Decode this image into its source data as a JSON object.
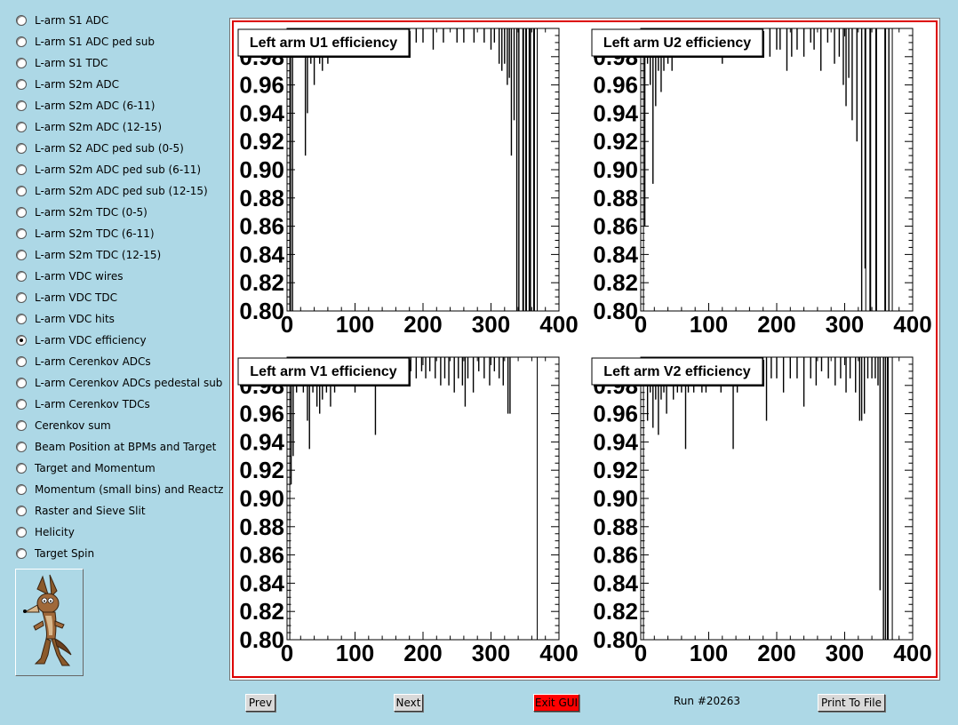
{
  "sidebar": {
    "items": [
      {
        "label": "L-arm S1 ADC",
        "checked": false
      },
      {
        "label": "L-arm S1 ADC ped sub",
        "checked": false
      },
      {
        "label": "L-arm S1 TDC",
        "checked": false
      },
      {
        "label": "L-arm S2m ADC",
        "checked": false
      },
      {
        "label": "L-arm S2m ADC (6-11)",
        "checked": false
      },
      {
        "label": "L-arm S2m ADC (12-15)",
        "checked": false
      },
      {
        "label": "L-arm S2 ADC ped sub (0-5)",
        "checked": false
      },
      {
        "label": "L-arm S2m ADC ped sub (6-11)",
        "checked": false
      },
      {
        "label": "L-arm S2m ADC ped sub (12-15)",
        "checked": false
      },
      {
        "label": "L-arm S2m TDC (0-5)",
        "checked": false
      },
      {
        "label": "L-arm S2m TDC (6-11)",
        "checked": false
      },
      {
        "label": "L-arm S2m TDC (12-15)",
        "checked": false
      },
      {
        "label": "L-arm VDC wires",
        "checked": false
      },
      {
        "label": "L-arm VDC TDC",
        "checked": false
      },
      {
        "label": "L-arm VDC hits",
        "checked": false
      },
      {
        "label": "L-arm VDC efficiency",
        "checked": true
      },
      {
        "label": "L-arm Cerenkov ADCs",
        "checked": false
      },
      {
        "label": "L-arm Cerenkov ADCs pedestal sub",
        "checked": false
      },
      {
        "label": "L-arm Cerenkov TDCs",
        "checked": false
      },
      {
        "label": "Cerenkov sum",
        "checked": false
      },
      {
        "label": "Beam Position at BPMs and Target",
        "checked": false
      },
      {
        "label": "Target and Momentum",
        "checked": false
      },
      {
        "label": "Momentum (small bins) and Reactz",
        "checked": false
      },
      {
        "label": "Raster and Sieve Slit",
        "checked": false
      },
      {
        "label": "Helicity",
        "checked": false
      },
      {
        "label": "Target Spin",
        "checked": false
      }
    ],
    "logo_icon": "coyote-logo-icon"
  },
  "buttons": {
    "prev": "Prev",
    "next": "Next",
    "exit": "Exit GUI",
    "print": "Print To File"
  },
  "status": {
    "run": "Run #20263"
  },
  "colors": {
    "background": "#add8e6",
    "exit_button": "#ff0000",
    "canvas_border": "#dd0000"
  },
  "chart_data": [
    {
      "type": "bar",
      "title": "Left arm U1 efficiency",
      "xlim": [
        0,
        400
      ],
      "ylim": [
        0.8,
        1.0
      ],
      "xticks": [
        "0",
        "100",
        "200",
        "300",
        "400"
      ],
      "yticks": [
        "0.80",
        "0.82",
        "0.84",
        "0.86",
        "0.88",
        "0.90",
        "0.92",
        "0.94",
        "0.96",
        "0.98"
      ],
      "data_range": [
        4,
        368
      ],
      "baseline": 1.0,
      "dips": [
        [
          5,
          0.8
        ],
        [
          8,
          0.8
        ],
        [
          18,
          0.98
        ],
        [
          22,
          0.99
        ],
        [
          27,
          0.91
        ],
        [
          30,
          0.94
        ],
        [
          35,
          0.975
        ],
        [
          40,
          0.96
        ],
        [
          44,
          0.985
        ],
        [
          48,
          0.975
        ],
        [
          52,
          0.97
        ],
        [
          56,
          0.985
        ],
        [
          60,
          0.975
        ],
        [
          65,
          0.99
        ],
        [
          70,
          0.985
        ],
        [
          78,
          0.99
        ],
        [
          85,
          0.99
        ],
        [
          95,
          0.99
        ],
        [
          110,
          0.99
        ],
        [
          125,
          0.99
        ],
        [
          140,
          0.99
        ],
        [
          160,
          0.99
        ],
        [
          175,
          0.99
        ],
        [
          180,
          0.985
        ],
        [
          190,
          0.99
        ],
        [
          200,
          0.99
        ],
        [
          215,
          0.985
        ],
        [
          230,
          0.99
        ],
        [
          250,
          0.99
        ],
        [
          260,
          0.99
        ],
        [
          275,
          0.99
        ],
        [
          290,
          0.99
        ],
        [
          300,
          0.985
        ],
        [
          305,
          0.99
        ],
        [
          312,
          0.975
        ],
        [
          316,
          0.97
        ],
        [
          320,
          0.975
        ],
        [
          324,
          0.96
        ],
        [
          327,
          0.965
        ],
        [
          330,
          0.91
        ],
        [
          334,
          0.935
        ],
        [
          338,
          0.8
        ],
        [
          341,
          0.8
        ],
        [
          347,
          0.8
        ],
        [
          352,
          0.8
        ],
        [
          358,
          0.8
        ],
        [
          363,
          0.8
        ]
      ],
      "gaps": [
        [
          348,
          351
        ],
        [
          356,
          357
        ],
        [
          364,
          368
        ]
      ]
    },
    {
      "type": "bar",
      "title": "Left arm U2 efficiency",
      "xlim": [
        0,
        400
      ],
      "ylim": [
        0.8,
        1.0
      ],
      "xticks": [
        "0",
        "100",
        "200",
        "300",
        "400"
      ],
      "yticks": [
        "0.80",
        "0.82",
        "0.84",
        "0.86",
        "0.88",
        "0.90",
        "0.92",
        "0.94",
        "0.96",
        "0.98"
      ],
      "data_range": [
        4,
        370
      ],
      "baseline": 1.0,
      "dips": [
        [
          6,
          0.86
        ],
        [
          10,
          0.975
        ],
        [
          14,
          0.96
        ],
        [
          18,
          0.89
        ],
        [
          22,
          0.945
        ],
        [
          26,
          0.97
        ],
        [
          30,
          0.955
        ],
        [
          34,
          0.97
        ],
        [
          40,
          0.975
        ],
        [
          46,
          0.97
        ],
        [
          52,
          0.985
        ],
        [
          60,
          0.98
        ],
        [
          70,
          0.985
        ],
        [
          80,
          0.98
        ],
        [
          90,
          0.985
        ],
        [
          100,
          0.99
        ],
        [
          110,
          0.985
        ],
        [
          120,
          0.975
        ],
        [
          130,
          0.985
        ],
        [
          145,
          0.98
        ],
        [
          160,
          0.99
        ],
        [
          175,
          0.985
        ],
        [
          190,
          0.98
        ],
        [
          200,
          0.985
        ],
        [
          205,
          0.985
        ],
        [
          215,
          0.97
        ],
        [
          222,
          0.98
        ],
        [
          230,
          0.985
        ],
        [
          240,
          0.98
        ],
        [
          250,
          0.99
        ],
        [
          255,
          0.985
        ],
        [
          265,
          0.97
        ],
        [
          275,
          0.99
        ],
        [
          285,
          0.975
        ],
        [
          292,
          0.98
        ],
        [
          298,
          0.96
        ],
        [
          302,
          0.945
        ],
        [
          306,
          0.965
        ],
        [
          311,
          0.935
        ],
        [
          318,
          0.92
        ],
        [
          325,
          0.8
        ],
        [
          330,
          0.83
        ],
        [
          338,
          0.8
        ],
        [
          346,
          0.8
        ],
        [
          360,
          0.8
        ],
        [
          365,
          0.8
        ]
      ],
      "gaps": [
        [
          331,
          337
        ],
        [
          347,
          359
        ]
      ]
    },
    {
      "type": "bar",
      "title": "Left arm V1 efficiency",
      "xlim": [
        0,
        400
      ],
      "ylim": [
        0.8,
        1.0
      ],
      "xticks": [
        "0",
        "100",
        "200",
        "300",
        "400"
      ],
      "yticks": [
        "0.80",
        "0.82",
        "0.84",
        "0.86",
        "0.88",
        "0.90",
        "0.92",
        "0.94",
        "0.96",
        "0.98"
      ],
      "data_range": [
        4,
        368
      ],
      "baseline": 1.0,
      "dips": [
        [
          6,
          0.91
        ],
        [
          9,
          0.93
        ],
        [
          14,
          0.975
        ],
        [
          18,
          0.985
        ],
        [
          24,
          0.975
        ],
        [
          30,
          0.955
        ],
        [
          33,
          0.935
        ],
        [
          38,
          0.975
        ],
        [
          44,
          0.965
        ],
        [
          48,
          0.96
        ],
        [
          52,
          0.97
        ],
        [
          58,
          0.975
        ],
        [
          64,
          0.965
        ],
        [
          70,
          0.975
        ],
        [
          76,
          0.98
        ],
        [
          84,
          0.985
        ],
        [
          92,
          0.985
        ],
        [
          100,
          0.975
        ],
        [
          108,
          0.985
        ],
        [
          115,
          0.99
        ],
        [
          122,
          0.985
        ],
        [
          130,
          0.945
        ],
        [
          140,
          0.985
        ],
        [
          150,
          0.99
        ],
        [
          160,
          0.99
        ],
        [
          172,
          0.985
        ],
        [
          182,
          0.99
        ],
        [
          190,
          0.985
        ],
        [
          198,
          0.99
        ],
        [
          204,
          0.985
        ],
        [
          210,
          0.99
        ],
        [
          218,
          0.985
        ],
        [
          226,
          0.98
        ],
        [
          232,
          0.985
        ],
        [
          238,
          0.98
        ],
        [
          246,
          0.975
        ],
        [
          252,
          0.985
        ],
        [
          258,
          0.98
        ],
        [
          262,
          0.965
        ],
        [
          266,
          0.985
        ],
        [
          274,
          0.975
        ],
        [
          282,
          0.99
        ],
        [
          290,
          0.985
        ],
        [
          298,
          0.98
        ],
        [
          305,
          0.99
        ],
        [
          312,
          0.985
        ],
        [
          318,
          0.98
        ],
        [
          325,
          0.96
        ],
        [
          328,
          0.96
        ]
      ]
    },
    {
      "type": "bar",
      "title": "Left arm V2 efficiency",
      "xlim": [
        0,
        400
      ],
      "ylim": [
        0.8,
        1.0
      ],
      "xticks": [
        "0",
        "100",
        "200",
        "300",
        "400"
      ],
      "yticks": [
        "0.80",
        "0.82",
        "0.84",
        "0.86",
        "0.88",
        "0.90",
        "0.92",
        "0.94",
        "0.96",
        "0.98"
      ],
      "data_range": [
        4,
        370
      ],
      "baseline": 1.0,
      "dips": [
        [
          6,
          0.98
        ],
        [
          10,
          0.955
        ],
        [
          14,
          0.975
        ],
        [
          18,
          0.95
        ],
        [
          22,
          0.97
        ],
        [
          26,
          0.945
        ],
        [
          30,
          0.97
        ],
        [
          34,
          0.975
        ],
        [
          38,
          0.96
        ],
        [
          44,
          0.985
        ],
        [
          48,
          0.97
        ],
        [
          54,
          0.975
        ],
        [
          60,
          0.975
        ],
        [
          66,
          0.935
        ],
        [
          70,
          0.975
        ],
        [
          78,
          0.975
        ],
        [
          84,
          0.985
        ],
        [
          90,
          0.975
        ],
        [
          96,
          0.975
        ],
        [
          104,
          0.985
        ],
        [
          112,
          0.98
        ],
        [
          118,
          0.975
        ],
        [
          124,
          0.99
        ],
        [
          130,
          0.985
        ],
        [
          136,
          0.935
        ],
        [
          142,
          0.975
        ],
        [
          150,
          0.985
        ],
        [
          160,
          0.985
        ],
        [
          170,
          0.985
        ],
        [
          178,
          0.985
        ],
        [
          185,
          0.955
        ],
        [
          192,
          0.985
        ],
        [
          200,
          0.985
        ],
        [
          210,
          0.975
        ],
        [
          220,
          0.985
        ],
        [
          230,
          0.985
        ],
        [
          240,
          0.965
        ],
        [
          250,
          0.985
        ],
        [
          258,
          0.98
        ],
        [
          266,
          0.99
        ],
        [
          276,
          0.985
        ],
        [
          286,
          0.98
        ],
        [
          294,
          0.985
        ],
        [
          302,
          0.975
        ],
        [
          308,
          0.985
        ],
        [
          316,
          0.975
        ],
        [
          322,
          0.955
        ],
        [
          325,
          0.955
        ],
        [
          329,
          0.96
        ],
        [
          334,
          0.985
        ],
        [
          340,
          0.985
        ],
        [
          345,
          0.985
        ],
        [
          349,
          0.98
        ],
        [
          352,
          0.835
        ],
        [
          357,
          0.8
        ],
        [
          360,
          0.8
        ],
        [
          363,
          0.8
        ]
      ],
      "gaps": [
        [
          364,
          370
        ]
      ]
    }
  ]
}
